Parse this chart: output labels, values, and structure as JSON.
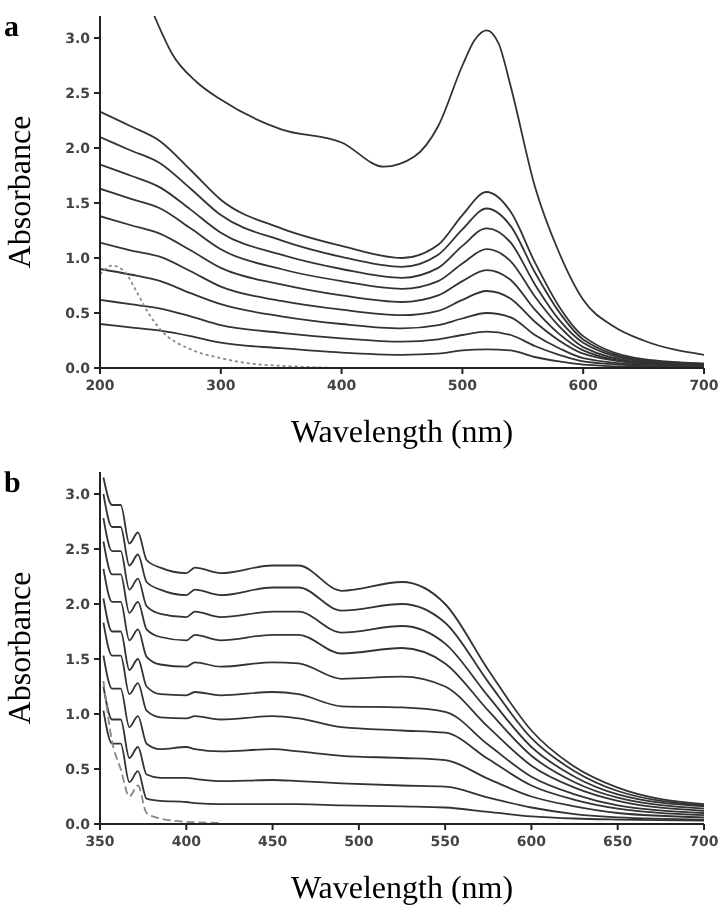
{
  "chart_data": [
    {
      "type": "line",
      "title": "a",
      "xlabel": "Wavelength (nm)",
      "ylabel": "Absorbance",
      "xlim": [
        200,
        700
      ],
      "ylim": [
        0,
        3.2
      ],
      "xticks": [
        200,
        300,
        400,
        500,
        600,
        700
      ],
      "yticks": [
        {
          "value": 0,
          "label": "0.0"
        },
        {
          "value": 0.5,
          "label": "0.5"
        },
        {
          "value": 1,
          "label": "1.0"
        },
        {
          "value": 1.5,
          "label": "1.5"
        },
        {
          "value": 2,
          "label": "2.0"
        },
        {
          "value": 2.5,
          "label": "2.5"
        },
        {
          "value": 3,
          "label": "3.0"
        }
      ],
      "x": [
        200,
        225,
        250,
        275,
        300,
        350,
        400,
        450,
        480,
        500,
        520,
        540,
        560,
        580,
        600,
        650,
        700
      ],
      "grid": false,
      "series": [
        {
          "color": "#333333",
          "x": [
            245,
            260,
            280,
            300,
            350,
            400,
            435,
            460,
            480,
            500,
            510,
            520,
            530,
            540,
            560,
            580,
            600,
            625,
            650,
            700
          ],
          "values": [
            3.2,
            2.85,
            2.6,
            2.44,
            2.17,
            2.05,
            1.83,
            1.92,
            2.2,
            2.75,
            2.98,
            3.07,
            2.95,
            2.56,
            1.65,
            1.05,
            0.62,
            0.38,
            0.25,
            0.12
          ]
        },
        {
          "color": "#333333",
          "values": [
            2.33,
            2.2,
            2.06,
            1.8,
            1.53,
            1.27,
            1.11,
            1.0,
            1.12,
            1.39,
            1.6,
            1.42,
            0.96,
            0.56,
            0.29,
            0.08,
            0.04
          ]
        },
        {
          "color": "#333333",
          "values": [
            2.1,
            1.98,
            1.86,
            1.63,
            1.39,
            1.16,
            1.01,
            0.92,
            1.03,
            1.26,
            1.45,
            1.29,
            0.87,
            0.51,
            0.26,
            0.07,
            0.04
          ]
        },
        {
          "color": "#333333",
          "values": [
            1.85,
            1.75,
            1.64,
            1.44,
            1.23,
            1.03,
            0.9,
            0.82,
            0.91,
            1.11,
            1.27,
            1.14,
            0.76,
            0.44,
            0.23,
            0.06,
            0.03
          ]
        },
        {
          "color": "#333333",
          "values": [
            1.63,
            1.54,
            1.45,
            1.27,
            1.08,
            0.9,
            0.79,
            0.72,
            0.79,
            0.95,
            1.08,
            0.97,
            0.65,
            0.38,
            0.19,
            0.05,
            0.03
          ]
        },
        {
          "color": "#333333",
          "values": [
            1.38,
            1.3,
            1.22,
            1.07,
            0.91,
            0.76,
            0.66,
            0.6,
            0.66,
            0.79,
            0.89,
            0.8,
            0.53,
            0.31,
            0.16,
            0.04,
            0.02
          ]
        },
        {
          "color": "#333333",
          "values": [
            1.14,
            1.07,
            1.01,
            0.88,
            0.74,
            0.61,
            0.53,
            0.48,
            0.52,
            0.62,
            0.7,
            0.63,
            0.42,
            0.25,
            0.13,
            0.04,
            0.02
          ]
        },
        {
          "color": "#333333",
          "values": [
            0.9,
            0.85,
            0.79,
            0.68,
            0.58,
            0.47,
            0.4,
            0.36,
            0.39,
            0.45,
            0.5,
            0.46,
            0.3,
            0.18,
            0.09,
            0.03,
            0.02
          ]
        },
        {
          "color": "#333333",
          "values": [
            0.62,
            0.58,
            0.54,
            0.47,
            0.39,
            0.32,
            0.27,
            0.24,
            0.26,
            0.3,
            0.33,
            0.3,
            0.2,
            0.12,
            0.06,
            0.02,
            0.01
          ]
        },
        {
          "color": "#333333",
          "values": [
            0.4,
            0.37,
            0.34,
            0.29,
            0.23,
            0.18,
            0.14,
            0.12,
            0.13,
            0.16,
            0.17,
            0.16,
            0.1,
            0.06,
            0.03,
            0.01,
            0.01
          ]
        },
        {
          "color": "#888888",
          "line_style": "dotted",
          "x": [
            200,
            210,
            220,
            230,
            240,
            250,
            275,
            300,
            325,
            350,
            400
          ],
          "values": [
            0.85,
            0.93,
            0.88,
            0.7,
            0.5,
            0.35,
            0.17,
            0.09,
            0.04,
            0.02,
            0
          ]
        }
      ]
    },
    {
      "type": "line",
      "title": "b",
      "xlabel": "Wavelength (nm)",
      "ylabel": "Absorbance",
      "xlim": [
        350,
        700
      ],
      "ylim": [
        0,
        3.2
      ],
      "xticks": [
        350,
        400,
        450,
        500,
        550,
        600,
        650,
        700
      ],
      "yticks": [
        {
          "value": 0,
          "label": "0.0"
        },
        {
          "value": 0.5,
          "label": "0.5"
        },
        {
          "value": 1,
          "label": "1.0"
        },
        {
          "value": 1.5,
          "label": "1.5"
        },
        {
          "value": 2,
          "label": "2.0"
        },
        {
          "value": 2.5,
          "label": "2.5"
        },
        {
          "value": 3,
          "label": "3.0"
        }
      ],
      "x": [
        352,
        357,
        362,
        367,
        372,
        377,
        385,
        400,
        405,
        420,
        450,
        465,
        490,
        525,
        550,
        575,
        600,
        625,
        650,
        700
      ],
      "grid": false,
      "series": [
        {
          "color": "#333333",
          "values": [
            3.15,
            2.9,
            2.9,
            2.55,
            2.65,
            2.4,
            2.33,
            2.28,
            2.33,
            2.28,
            2.35,
            2.35,
            2.12,
            2.2,
            2.0,
            1.4,
            0.85,
            0.52,
            0.33,
            0.18
          ]
        },
        {
          "color": "#333333",
          "values": [
            3.0,
            2.7,
            2.7,
            2.35,
            2.45,
            2.2,
            2.13,
            2.08,
            2.13,
            2.08,
            2.15,
            2.15,
            1.94,
            2.0,
            1.83,
            1.29,
            0.78,
            0.48,
            0.3,
            0.17
          ]
        },
        {
          "color": "#333333",
          "values": [
            2.78,
            2.48,
            2.48,
            2.13,
            2.23,
            1.98,
            1.91,
            1.88,
            1.93,
            1.88,
            1.93,
            1.93,
            1.74,
            1.8,
            1.64,
            1.16,
            0.7,
            0.43,
            0.27,
            0.16
          ]
        },
        {
          "color": "#333333",
          "values": [
            2.57,
            2.27,
            2.27,
            1.92,
            2.02,
            1.77,
            1.7,
            1.67,
            1.72,
            1.67,
            1.72,
            1.72,
            1.55,
            1.6,
            1.46,
            1.03,
            0.62,
            0.38,
            0.24,
            0.14
          ]
        },
        {
          "color": "#333333",
          "values": [
            2.32,
            2.02,
            2.02,
            1.67,
            1.77,
            1.52,
            1.45,
            1.43,
            1.47,
            1.43,
            1.47,
            1.46,
            1.32,
            1.34,
            1.25,
            0.88,
            0.53,
            0.33,
            0.21,
            0.12
          ]
        },
        {
          "color": "#333333",
          "values": [
            2.05,
            1.75,
            1.75,
            1.4,
            1.5,
            1.25,
            1.18,
            1.17,
            1.2,
            1.17,
            1.2,
            1.18,
            1.07,
            1.06,
            1.02,
            0.72,
            0.43,
            0.27,
            0.17,
            0.1
          ]
        },
        {
          "color": "#333333",
          "values": [
            1.83,
            1.53,
            1.53,
            1.18,
            1.28,
            1.03,
            0.97,
            0.96,
            0.98,
            0.95,
            0.98,
            0.96,
            0.88,
            0.85,
            0.83,
            0.59,
            0.35,
            0.22,
            0.14,
            0.08
          ]
        },
        {
          "color": "#333333",
          "values": [
            1.53,
            1.23,
            1.23,
            0.88,
            0.98,
            0.73,
            0.68,
            0.7,
            0.68,
            0.66,
            0.68,
            0.66,
            0.62,
            0.6,
            0.58,
            0.41,
            0.25,
            0.16,
            0.1,
            0.06
          ]
        },
        {
          "color": "#333333",
          "values": [
            1.25,
            0.95,
            0.95,
            0.6,
            0.7,
            0.45,
            0.42,
            0.42,
            0.41,
            0.39,
            0.4,
            0.39,
            0.37,
            0.35,
            0.34,
            0.24,
            0.15,
            0.09,
            0.06,
            0.04
          ]
        },
        {
          "color": "#333333",
          "values": [
            1.03,
            0.73,
            0.73,
            0.38,
            0.48,
            0.23,
            0.21,
            0.2,
            0.19,
            0.18,
            0.18,
            0.18,
            0.17,
            0.16,
            0.15,
            0.11,
            0.07,
            0.05,
            0.04,
            0.03
          ]
        },
        {
          "color": "#888888",
          "line_style": "dashed",
          "x": [
            352,
            357,
            362,
            367,
            372,
            377,
            385,
            400,
            420
          ],
          "values": [
            1.3,
            0.75,
            0.5,
            0.25,
            0.35,
            0.1,
            0.05,
            0.02,
            0.01
          ]
        }
      ]
    }
  ]
}
